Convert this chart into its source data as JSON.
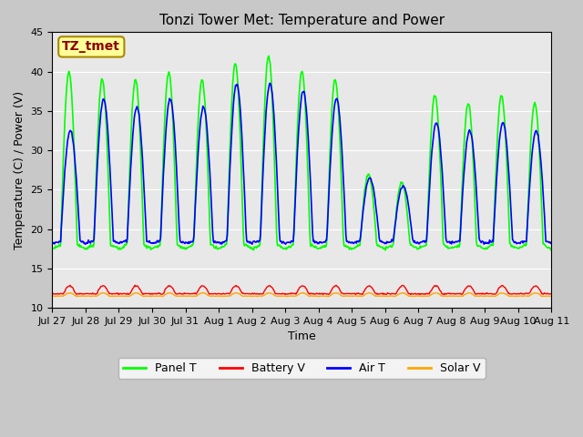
{
  "title": "Tonzi Tower Met: Temperature and Power",
  "xlabel": "Time",
  "ylabel": "Temperature (C) / Power (V)",
  "annotation": "TZ_tmet",
  "annotation_color": "#8B0000",
  "annotation_bg": "#FFFF99",
  "ylim": [
    10,
    45
  ],
  "yticks": [
    10,
    15,
    20,
    25,
    30,
    35,
    40,
    45
  ],
  "legend_entries": [
    "Panel T",
    "Battery V",
    "Air T",
    "Solar V"
  ],
  "line_colors": {
    "panel_t": "#00FF00",
    "battery_v": "#FF0000",
    "air_t": "#0000FF",
    "solar_v": "#FFA500"
  },
  "x_tick_labels": [
    "Jul 27",
    "Jul 28",
    "Jul 29",
    "Jul 30",
    "Jul 31",
    "Aug 1",
    "Aug 2",
    "Aug 3",
    "Aug 4",
    "Aug 5",
    "Aug 6",
    "Aug 7",
    "Aug 8",
    "Aug 9",
    "Aug 10",
    "Aug 11"
  ],
  "n_days": 15,
  "fig_bg": "#C8C8C8",
  "plot_bg": "#E8E8E8"
}
